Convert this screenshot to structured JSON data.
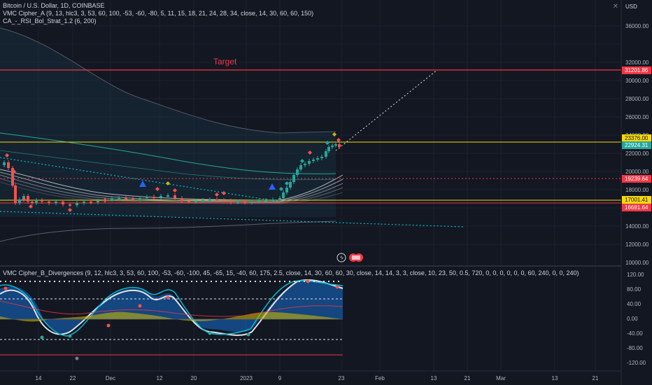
{
  "legend": {
    "line1": "Bitcoin / U.S. Dollar, 1D, COINBASE",
    "line2": "VMC Cipher_A (9, 13, hlc3, 3, 53, 60, 100, -53, -60, -80, 5, 11, 15, 18, 21, 24, 28, 34, close, 14, 30, 60, 60, 150)",
    "line3": "CA_-_RSI_Bol_Strat_1.2 (6, 200)",
    "osc": "VMC Cipher_B_Divergences (9, 12, hlc3, 3, 53, 60, 100, -53, -60, -100, 45, -65, 15, -40, 60, 175, 2.5, close, 14, 30, 60, 60, 30, close, 14, 14, 3, 3, close, 10, 23, 50, 0.5, 720, 0, 0, 0, 0, 0, 0, 60, 240, 0, 0, 240)"
  },
  "currency": "USD",
  "target_label": "Target",
  "close_icon": "close-icon",
  "price_axis": {
    "ticks": [
      "36000.00",
      "32000.00",
      "30000.00",
      "28000.00",
      "26000.00",
      "24000.00",
      "22000.00",
      "20000.00",
      "18000.00",
      "16000.00",
      "14000.00",
      "12000.00",
      "10000.00"
    ],
    "badges": [
      {
        "value": "31201.86",
        "color": "#f23645",
        "text_color": "#ffffff"
      },
      {
        "value": "23376.00",
        "color": "#f5d90a",
        "text_color": "#131722"
      },
      {
        "value": "22924.31",
        "color": "#26a69a",
        "text_color": "#ffffff"
      },
      {
        "value": "19239.64",
        "color": "#f23645",
        "text_color": "#ffffff"
      },
      {
        "value": "17001.41",
        "color": "#f5d90a",
        "text_color": "#131722"
      },
      {
        "value": "16681.64",
        "color": "#f23645",
        "text_color": "#ffffff"
      }
    ]
  },
  "osc_axis": {
    "ticks": [
      "120.00",
      "80.00",
      "40.00",
      "0.00",
      "-40.00",
      "-80.00",
      "-120.00"
    ]
  },
  "time_axis": {
    "labels": [
      "14",
      "22",
      "Dec",
      "12",
      "20",
      "2023",
      "9",
      "23",
      "Feb",
      "13",
      "21",
      "Mar",
      "13",
      "21"
    ]
  },
  "colors": {
    "bg": "#131722",
    "grid": "#1e222d",
    "up": "#26a69a",
    "down": "#ef5350",
    "target": "#f23645",
    "yellow": "#f5d90a",
    "cyan": "#00bcd4"
  }
}
